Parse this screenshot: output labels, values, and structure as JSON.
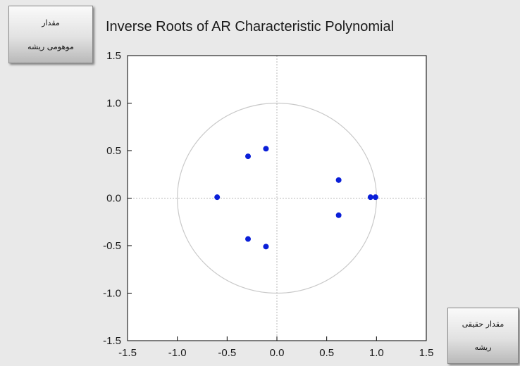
{
  "chart_data": {
    "type": "scatter",
    "title": "Inverse Roots of AR Characteristic Polynomial",
    "xlim": [
      -1.5,
      1.5
    ],
    "ylim": [
      -1.5,
      1.5
    ],
    "xticks": [
      "-1.5",
      "-1.0",
      "-0.5",
      "0.0",
      "0.5",
      "1.0",
      "1.5"
    ],
    "yticks": [
      "1.5",
      "1.0",
      "0.5",
      "0.0",
      "-0.5",
      "-1.0",
      "-1.5"
    ],
    "xtick_values": [
      -1.5,
      -1.0,
      -0.5,
      0.0,
      0.5,
      1.0,
      1.5
    ],
    "ytick_values": [
      1.5,
      1.0,
      0.5,
      0.0,
      -0.5,
      -1.0,
      -1.5
    ],
    "points": [
      {
        "x": -0.11,
        "y": 0.52
      },
      {
        "x": -0.29,
        "y": 0.44
      },
      {
        "x": -0.6,
        "y": 0.01
      },
      {
        "x": -0.29,
        "y": -0.43
      },
      {
        "x": -0.11,
        "y": -0.51
      },
      {
        "x": 0.62,
        "y": 0.19
      },
      {
        "x": 0.62,
        "y": -0.18
      },
      {
        "x": 0.94,
        "y": 0.01
      },
      {
        "x": 0.99,
        "y": 0.01
      }
    ],
    "unit_circle": true,
    "zero_reference_lines": true,
    "point_color": "#0a1fd8"
  },
  "annotations": {
    "imag_line1": "مقدار",
    "imag_line2": "موهومی ریشه",
    "real_line1": "مقدار حقیقی",
    "real_line2": "ریشه"
  }
}
